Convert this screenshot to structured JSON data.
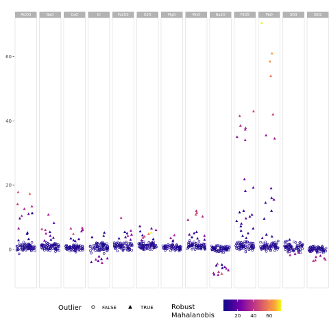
{
  "chart_data": {
    "type": "scatter",
    "title": "",
    "xlabel": "",
    "ylabel": "",
    "ylim": [
      -12,
      74
    ],
    "y_ticks": [
      0,
      20,
      40,
      60
    ],
    "y_tick_labels": [
      "0",
      "20",
      "40",
      "60"
    ],
    "grid": false,
    "legend_position": "bottom",
    "facets": [
      "Al2O3",
      "BaO",
      "CaO",
      "Cl",
      "Fe2O3",
      "K2O",
      "MgO",
      "MnO",
      "Na2O",
      "P2O5",
      "PbO",
      "SO3",
      "SiO2"
    ],
    "outlier_legend": {
      "title": "Outlier",
      "entries": [
        {
          "label": "FALSE",
          "shape": "circle"
        },
        {
          "label": "TRUE",
          "shape": "triangle"
        }
      ]
    },
    "color_legend": {
      "title_line1": "Robust",
      "title_line2": "Mahalanobis",
      "scale": "plasma",
      "range": [
        2,
        75
      ],
      "ticks": [
        20,
        40,
        60
      ],
      "tick_labels": [
        "20",
        "40",
        "60"
      ]
    },
    "series": [
      {
        "facet": "Al2O3",
        "inlier_range": [
          -2,
          3
        ],
        "outliers": [
          {
            "y": 17.3,
            "d": 55
          },
          {
            "y": 17.8,
            "d": 50
          },
          {
            "y": 14.1,
            "d": 45
          },
          {
            "y": 13.4,
            "d": 40
          },
          {
            "y": 12.6,
            "d": 38
          },
          {
            "y": 11.3,
            "d": 5
          },
          {
            "y": 11.0,
            "d": 20
          },
          {
            "y": 10.4,
            "d": 35
          },
          {
            "y": 9.6,
            "d": 10
          },
          {
            "y": 6.5,
            "d": 30
          },
          {
            "y": 5.2,
            "d": 5
          },
          {
            "y": 4.8,
            "d": 5
          },
          {
            "y": 3.2,
            "d": 5
          },
          {
            "y": 2.8,
            "d": 8
          }
        ]
      },
      {
        "facet": "BaO",
        "inlier_range": [
          -1,
          2.5
        ],
        "outliers": [
          {
            "y": 10.8,
            "d": 35
          },
          {
            "y": 8.2,
            "d": 18
          },
          {
            "y": 6.3,
            "d": 45
          },
          {
            "y": 6.0,
            "d": 40
          },
          {
            "y": 5.4,
            "d": 15
          },
          {
            "y": 4.9,
            "d": 30
          },
          {
            "y": 4.2,
            "d": 22
          },
          {
            "y": 3.6,
            "d": 12
          },
          {
            "y": 3.0,
            "d": 8
          },
          {
            "y": 2.7,
            "d": 25
          }
        ]
      },
      {
        "facet": "CaO",
        "inlier_range": [
          -1,
          2
        ],
        "outliers": [
          {
            "y": 6.7,
            "d": 45
          },
          {
            "y": 6.5,
            "d": 40
          },
          {
            "y": 6.2,
            "d": 35
          },
          {
            "y": 6.0,
            "d": 30
          },
          {
            "y": 5.6,
            "d": 25
          },
          {
            "y": 4.8,
            "d": 50
          },
          {
            "y": 3.4,
            "d": 5
          },
          {
            "y": 3.2,
            "d": 10
          },
          {
            "y": 2.8,
            "d": 8
          },
          {
            "y": 2.6,
            "d": 15
          }
        ]
      },
      {
        "facet": "Cl",
        "inlier_range": [
          -1.5,
          3
        ],
        "outliers": [
          {
            "y": 5.2,
            "d": 5
          },
          {
            "y": 4.2,
            "d": 12
          },
          {
            "y": 3.8,
            "d": 8
          },
          {
            "y": -2.2,
            "d": 20
          },
          {
            "y": -2.8,
            "d": 25
          },
          {
            "y": -3.2,
            "d": 30
          },
          {
            "y": -3.6,
            "d": 18
          },
          {
            "y": -4.0,
            "d": 15
          },
          {
            "y": -4.2,
            "d": 35
          },
          {
            "y": -3.0,
            "d": 10
          }
        ]
      },
      {
        "facet": "Fe2O3",
        "inlier_range": [
          -1,
          3
        ],
        "outliers": [
          {
            "y": 9.8,
            "d": 40
          },
          {
            "y": 5.8,
            "d": 30
          },
          {
            "y": 5.4,
            "d": 5
          },
          {
            "y": 5.0,
            "d": 10
          },
          {
            "y": 4.6,
            "d": 25
          },
          {
            "y": 4.2,
            "d": 35
          },
          {
            "y": 3.8,
            "d": 15
          },
          {
            "y": 3.4,
            "d": 8
          },
          {
            "y": 3.0,
            "d": 20
          }
        ]
      },
      {
        "facet": "K2O",
        "inlier_range": [
          -1,
          3
        ],
        "outliers": [
          {
            "y": 7.2,
            "d": 15
          },
          {
            "y": 6.5,
            "d": 20
          },
          {
            "y": 6.0,
            "d": 30
          },
          {
            "y": 5.6,
            "d": 5
          },
          {
            "y": 5.2,
            "d": 75
          },
          {
            "y": 4.8,
            "d": 55
          },
          {
            "y": 4.4,
            "d": 10
          },
          {
            "y": 4.0,
            "d": 45
          },
          {
            "y": 3.6,
            "d": 40
          },
          {
            "y": 3.2,
            "d": 8
          },
          {
            "y": 2.8,
            "d": 25
          }
        ]
      },
      {
        "facet": "MgO",
        "inlier_range": [
          -1,
          2
        ],
        "outliers": [
          {
            "y": 4.4,
            "d": 35
          },
          {
            "y": 3.5,
            "d": 30
          },
          {
            "y": 2.8,
            "d": 20
          },
          {
            "y": 2.5,
            "d": 8
          }
        ]
      },
      {
        "facet": "MnO",
        "inlier_range": [
          -1,
          3
        ],
        "outliers": [
          {
            "y": 12.0,
            "d": 40
          },
          {
            "y": 11.4,
            "d": 45
          },
          {
            "y": 10.8,
            "d": 48
          },
          {
            "y": 10.2,
            "d": 38
          },
          {
            "y": 9.2,
            "d": 36
          },
          {
            "y": 5.4,
            "d": 12
          },
          {
            "y": 5.0,
            "d": 8
          },
          {
            "y": 4.6,
            "d": 20
          },
          {
            "y": 4.2,
            "d": 25
          },
          {
            "y": 3.8,
            "d": 5
          },
          {
            "y": 3.4,
            "d": 10
          },
          {
            "y": 3.0,
            "d": 15
          }
        ]
      },
      {
        "facet": "Na2O",
        "inlier_range": [
          -1.5,
          2
        ],
        "outliers": [
          {
            "y": -4.5,
            "d": 45
          },
          {
            "y": -5.0,
            "d": 10
          },
          {
            "y": -5.5,
            "d": 18
          },
          {
            "y": -6.0,
            "d": 30
          },
          {
            "y": -6.5,
            "d": 25
          },
          {
            "y": -7.0,
            "d": 40
          },
          {
            "y": -7.4,
            "d": 35
          },
          {
            "y": -7.8,
            "d": 20
          },
          {
            "y": -8.0,
            "d": 28
          },
          {
            "y": -7.6,
            "d": 50
          },
          {
            "y": -5.8,
            "d": 8
          },
          {
            "y": -4.8,
            "d": 5
          }
        ]
      },
      {
        "facet": "P2O5",
        "inlier_range": [
          -1,
          3
        ],
        "outliers": [
          {
            "y": 43.0,
            "d": 45
          },
          {
            "y": 41.5,
            "d": 42
          },
          {
            "y": 38.5,
            "d": 40
          },
          {
            "y": 37.8,
            "d": 38
          },
          {
            "y": 37.3,
            "d": 35
          },
          {
            "y": 35.0,
            "d": 30
          },
          {
            "y": 34.0,
            "d": 32
          },
          {
            "y": 21.8,
            "d": 25
          },
          {
            "y": 19.2,
            "d": 15
          },
          {
            "y": 18.2,
            "d": 18
          },
          {
            "y": 12.0,
            "d": 10
          },
          {
            "y": 11.5,
            "d": 5
          },
          {
            "y": 10.8,
            "d": 12
          },
          {
            "y": 10.2,
            "d": 8
          },
          {
            "y": 9.6,
            "d": 20
          },
          {
            "y": 8.8,
            "d": 6
          },
          {
            "y": 8.0,
            "d": 14
          },
          {
            "y": 7.2,
            "d": 5
          },
          {
            "y": 6.5,
            "d": 10
          },
          {
            "y": 5.8,
            "d": 7
          },
          {
            "y": 5.0,
            "d": 9
          },
          {
            "y": 4.2,
            "d": 5
          },
          {
            "y": 3.5,
            "d": 11
          }
        ]
      },
      {
        "facet": "PbO",
        "inlier_range": [
          -1,
          3
        ],
        "outliers": [
          {
            "y": 70.5,
            "d": 75
          },
          {
            "y": 61.0,
            "d": 65
          },
          {
            "y": 58.5,
            "d": 62
          },
          {
            "y": 54.0,
            "d": 58
          },
          {
            "y": 42.0,
            "d": 45
          },
          {
            "y": 35.5,
            "d": 30
          },
          {
            "y": 34.5,
            "d": 33
          },
          {
            "y": 19.0,
            "d": 20
          },
          {
            "y": 16.0,
            "d": 15
          },
          {
            "y": 15.5,
            "d": 18
          },
          {
            "y": 14.5,
            "d": 12
          },
          {
            "y": 12.0,
            "d": 10
          },
          {
            "y": 9.5,
            "d": 8
          },
          {
            "y": 4.6,
            "d": 5
          },
          {
            "y": 4.0,
            "d": 10
          },
          {
            "y": 3.5,
            "d": 15
          }
        ]
      },
      {
        "facet": "SO3",
        "inlier_range": [
          -1.5,
          3
        ],
        "outliers": [
          {
            "y": -1.0,
            "d": 25
          },
          {
            "y": -1.4,
            "d": 30
          },
          {
            "y": -1.8,
            "d": 35
          },
          {
            "y": 3.0,
            "d": 5
          }
        ]
      },
      {
        "facet": "SiO2",
        "inlier_range": [
          -1.5,
          1.5
        ],
        "outliers": [
          {
            "y": -2.8,
            "d": 35
          },
          {
            "y": -3.2,
            "d": 40
          },
          {
            "y": -3.4,
            "d": 38
          },
          {
            "y": -3.6,
            "d": 42
          },
          {
            "y": -2.4,
            "d": 30
          },
          {
            "y": -2.0,
            "d": 25
          }
        ]
      }
    ]
  }
}
